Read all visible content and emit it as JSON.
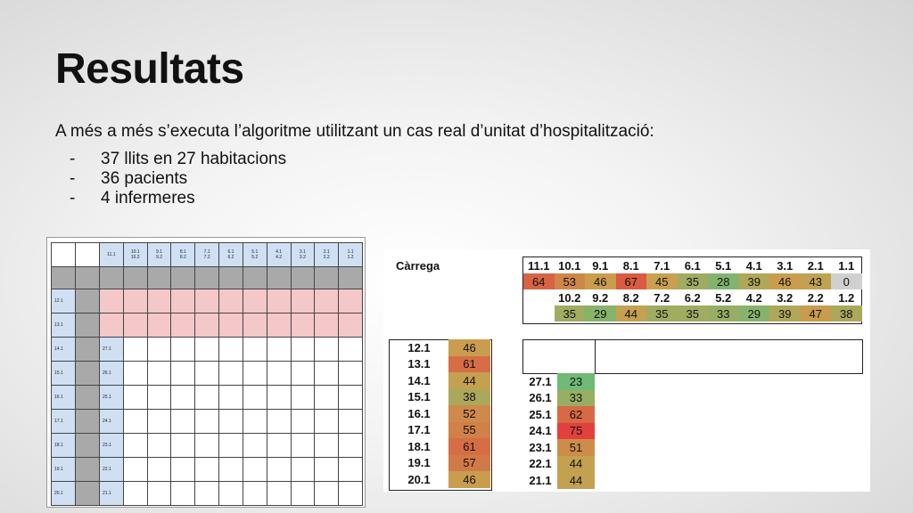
{
  "slide": {
    "title": "Resultats",
    "intro": "A més a més s’executa l’algoritme utilitzant un cas real d’unitat d’hospitalització:",
    "bullets": [
      "37 llits en 27 habitacions",
      "36 pacients",
      "4 infermeres"
    ]
  },
  "left_grid": {
    "header": [
      "11.1",
      "10.1\n10.2",
      "9.1\n9.2",
      "8.1\n8.2",
      "7.1\n7.2",
      "6.1\n6.2",
      "5.1\n5.2",
      "4.1\n4.2",
      "3.1\n3.2",
      "2.1\n2.2",
      "1.1\n1.2"
    ],
    "pink_rows": [
      "12.1",
      "13.1"
    ],
    "row_pairs": [
      [
        "14.1",
        "27.1"
      ],
      [
        "15.1",
        "26.1"
      ],
      [
        "16.1",
        "25.1"
      ],
      [
        "17.1",
        "24.1"
      ],
      [
        "18.1",
        "23.1"
      ],
      [
        "19.1",
        "22.1"
      ],
      [
        "20.1",
        "21.1"
      ]
    ]
  },
  "carrega": {
    "label": "Càrrega",
    "top_labels": [
      "11.1",
      "10.1",
      "9.1",
      "8.1",
      "7.1",
      "6.1",
      "5.1",
      "4.1",
      "3.1",
      "2.1",
      "1.1"
    ],
    "top_values": [
      "64",
      "53",
      "46",
      "67",
      "45",
      "35",
      "28",
      "39",
      "46",
      "43",
      "0"
    ],
    "second_labels": [
      "10.2",
      "9.2",
      "8.2",
      "7.2",
      "6.2",
      "5.2",
      "4.2",
      "3.2",
      "2.2",
      "1.2"
    ],
    "second_values": [
      "35",
      "29",
      "44",
      "35",
      "35",
      "33",
      "29",
      "39",
      "47",
      "38"
    ],
    "left_labels": [
      "12.1",
      "13.1",
      "14.1",
      "15.1",
      "16.1",
      "17.1",
      "18.1",
      "19.1",
      "20.1"
    ],
    "left_values": [
      "46",
      "61",
      "44",
      "38",
      "52",
      "55",
      "61",
      "57",
      "46"
    ],
    "mid_labels": [
      "27.1",
      "26.1",
      "25.1",
      "24.1",
      "23.1",
      "22.1",
      "21.1"
    ],
    "mid_values": [
      "23",
      "33",
      "62",
      "75",
      "51",
      "44",
      "44"
    ]
  },
  "colors": {
    "low": "#63be7b",
    "mid": "#c8a04e",
    "high": "#e2403c",
    "gray": "#d0d0d0",
    "pink": "#f4c7c9",
    "header_blue": "#cfe0f3"
  }
}
